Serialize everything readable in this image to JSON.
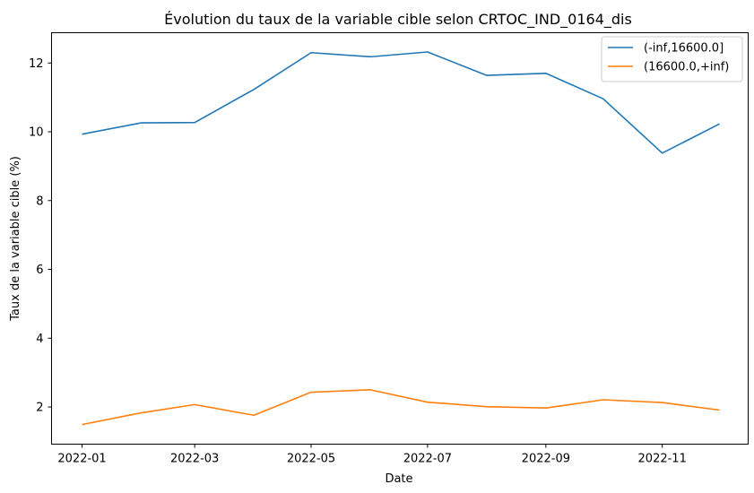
{
  "chart_data": {
    "type": "line",
    "title": "Évolution du taux de la variable cible selon CRTOC_IND_0164_dis",
    "xlabel": "Date",
    "ylabel": "Taux de la variable cible (%)",
    "x": [
      "2022-01-01",
      "2022-02-01",
      "2022-03-01",
      "2022-04-01",
      "2022-05-01",
      "2022-06-01",
      "2022-07-01",
      "2022-08-01",
      "2022-09-01",
      "2022-10-01",
      "2022-11-01",
      "2022-12-01"
    ],
    "xticks": [
      "2022-01",
      "2022-03",
      "2022-05",
      "2022-07",
      "2022-09",
      "2022-11"
    ],
    "xlim": [
      "2021-12-16",
      "2022-12-16"
    ],
    "ylim": [
      0.92,
      12.88
    ],
    "yticks": [
      2,
      4,
      6,
      8,
      10,
      12
    ],
    "grid": false,
    "legend_position": "top-right",
    "series": [
      {
        "name": "(-inf,16600.0]",
        "color": "#1f77b4",
        "values": [
          9.93,
          10.26,
          10.27,
          11.23,
          12.3,
          12.18,
          12.32,
          11.64,
          11.7,
          10.96,
          9.38,
          10.23
        ]
      },
      {
        "name": "(16600.0,+inf)",
        "color": "#ff7f0e",
        "values": [
          1.49,
          1.83,
          2.07,
          1.76,
          2.43,
          2.5,
          2.14,
          2.01,
          1.97,
          2.21,
          2.13,
          1.91
        ]
      }
    ]
  }
}
